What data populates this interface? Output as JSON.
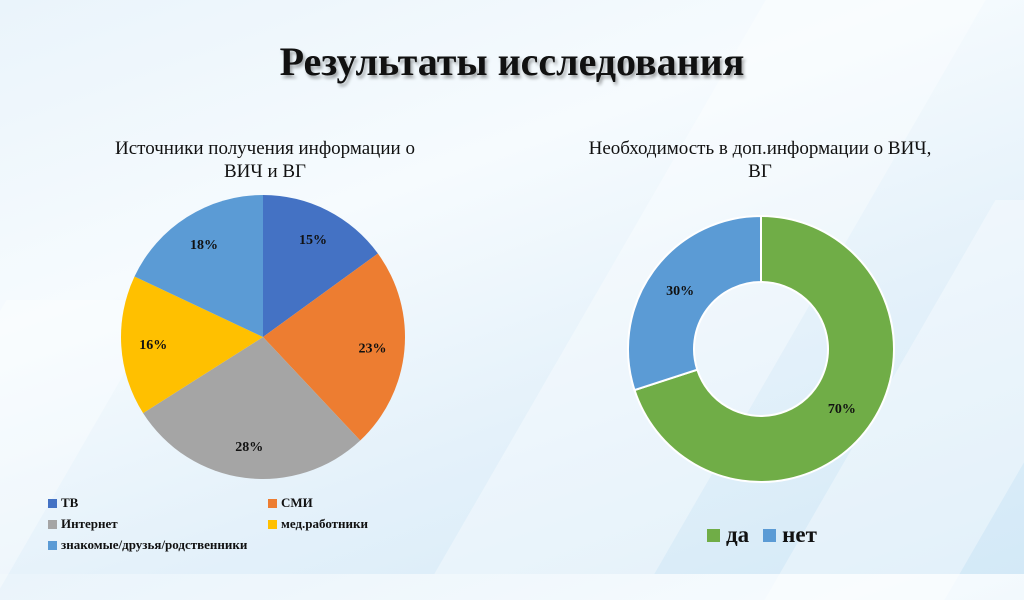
{
  "slide": {
    "title": "Результаты исследования"
  },
  "chart_data": [
    {
      "type": "pie",
      "title": "Источники получения информации о ВИЧ и ВГ",
      "title_lines": [
        "Источники получения информации о",
        "ВИЧ и ВГ"
      ],
      "categories": [
        "ТВ",
        "СМИ",
        "Интернет",
        "мед.работники",
        "знакомые/друзья/родственники"
      ],
      "values": [
        15,
        23,
        28,
        16,
        18
      ],
      "labels": [
        "15%",
        "23%",
        "28%",
        "16%",
        "18%"
      ],
      "colors": [
        "#4472C4",
        "#ED7D31",
        "#A5A5A5",
        "#FFC000",
        "#5B9BD5"
      ],
      "legend_position": "bottom"
    },
    {
      "type": "donut",
      "title": "Необходимость в доп.информации о ВИЧ, ВГ",
      "title_lines": [
        "Необходимость в доп.информации о ВИЧ,",
        "ВГ"
      ],
      "categories": [
        "да",
        "нет"
      ],
      "values": [
        70,
        30
      ],
      "labels": [
        "70%",
        "30%"
      ],
      "colors": [
        "#70AD47",
        "#5B9BD5"
      ],
      "legend_position": "bottom"
    }
  ]
}
